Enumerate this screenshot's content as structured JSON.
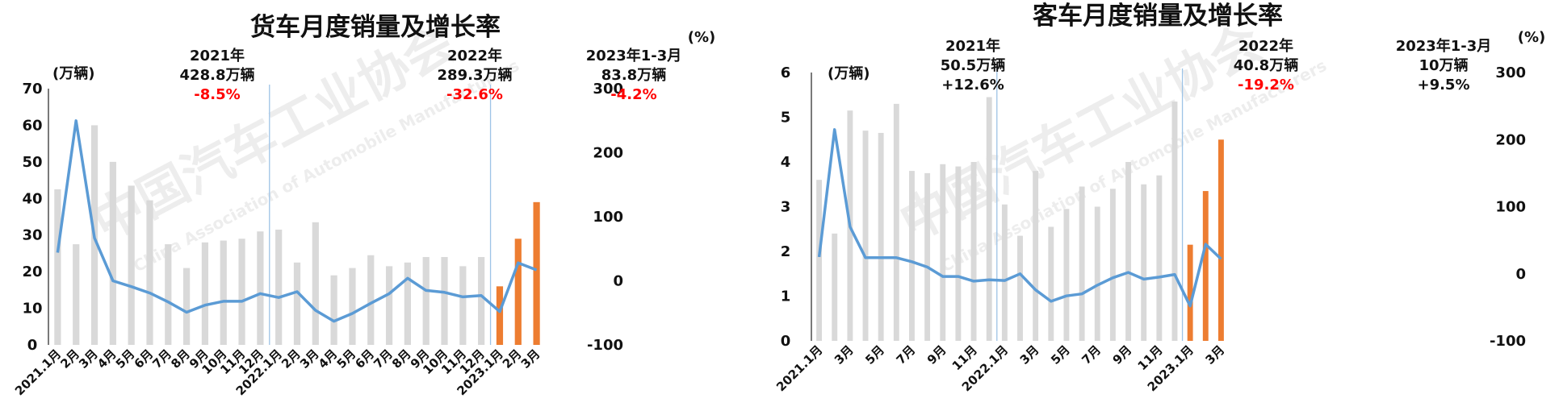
{
  "chart_data": [
    {
      "type": "bar+line",
      "title": "货车月度销量及增长率",
      "left_unit": "(万辆)",
      "right_unit": "(%)",
      "left_ylim": [
        0,
        70
      ],
      "left_ticks": [
        "0",
        "10",
        "20",
        "30",
        "40",
        "50",
        "60",
        "70"
      ],
      "right_ylim": [
        -100,
        300
      ],
      "right_ticks": [
        "-100",
        "0",
        "100",
        "200",
        "300"
      ],
      "categories": [
        "2021.1月",
        "2月",
        "3月",
        "4月",
        "5月",
        "6月",
        "7月",
        "8月",
        "9月",
        "10月",
        "11月",
        "12月",
        "2022.1月",
        "2月",
        "3月",
        "4月",
        "5月",
        "6月",
        "7月",
        "8月",
        "9月",
        "10月",
        "11月",
        "12月",
        "2023.1月",
        "2月",
        "3月"
      ],
      "series": [
        {
          "kind": "bar",
          "values": [
            42.5,
            27.5,
            60,
            50,
            43.5,
            39.5,
            27.5,
            21,
            28,
            28.5,
            29,
            31,
            31.5,
            22.5,
            33.5,
            19,
            21,
            24.5,
            21.5,
            22.5,
            24,
            24,
            21.5,
            24,
            16,
            29,
            39
          ]
        },
        {
          "kind": "line",
          "axis": "right",
          "values": [
            44,
            250,
            67,
            0,
            -9,
            -19,
            -33,
            -49,
            -38,
            -32,
            -32,
            -20,
            -26,
            -17,
            -46,
            -63,
            -51,
            -35,
            -20,
            4,
            -15,
            -18,
            -25,
            -23,
            -48,
            28,
            17
          ]
        }
      ],
      "annotations": [
        {
          "text": [
            "2021年",
            "428.8万辆"
          ],
          "change": "-8.5%"
        },
        {
          "text": [
            "2022年",
            "289.3万辆"
          ],
          "change": "-32.6%"
        },
        {
          "text": [
            "2023年1-3月",
            "83.8万辆"
          ],
          "change": "-4.2%"
        }
      ]
    },
    {
      "type": "bar+line",
      "title": "客车月度销量及增长率",
      "left_unit": "(万辆)",
      "right_unit": "(%)",
      "left_ylim": [
        0,
        6
      ],
      "left_ticks": [
        "0",
        "1",
        "2",
        "3",
        "4",
        "5",
        "6"
      ],
      "right_ylim": [
        -100,
        300
      ],
      "right_ticks": [
        "-100",
        "0",
        "100",
        "200",
        "300"
      ],
      "categories": [
        "2021.1月",
        "",
        "3月",
        "",
        "5月",
        "",
        "7月",
        "",
        "9月",
        "",
        "11月",
        "",
        "2022.1月",
        "",
        "3月",
        "",
        "5月",
        "",
        "7月",
        "",
        "9月",
        "",
        "11月",
        "",
        "2023.1月",
        "",
        "3月"
      ],
      "series": [
        {
          "kind": "bar",
          "values": [
            3.6,
            2.4,
            5.15,
            4.7,
            4.65,
            5.3,
            3.8,
            3.75,
            3.95,
            3.9,
            4.0,
            5.45,
            3.05,
            2.35,
            3.8,
            2.55,
            2.95,
            3.45,
            3.0,
            3.4,
            4.0,
            3.5,
            3.7,
            5.35,
            2.15,
            3.35,
            4.5
          ]
        },
        {
          "kind": "line",
          "axis": "right",
          "values": [
            25,
            215,
            70,
            24,
            24,
            24,
            18,
            10,
            -4,
            -4,
            -11,
            -9,
            -10,
            0,
            -24,
            -41,
            -33,
            -30,
            -17,
            -6,
            2,
            -8,
            -5,
            -1,
            -48,
            44,
            22
          ]
        }
      ],
      "annotations": [
        {
          "text": [
            "2021年",
            "50.5万辆"
          ],
          "change": "+12.6%"
        },
        {
          "text": [
            "2022年",
            "40.8万辆"
          ],
          "change": "-19.2%"
        },
        {
          "text": [
            "2023年1-3月",
            "10万辆"
          ],
          "change": "+9.5%"
        }
      ]
    }
  ],
  "colors": {
    "bar_history": "#d9d9d9",
    "bar_current": "#ed7d31",
    "line": "#5b9bd5",
    "divider": "#9dc3e6",
    "negative": "#ff0000"
  },
  "watermark": {
    "cn": "中国汽车工业协会",
    "en": "China Association of Automobile Manufacturers"
  }
}
